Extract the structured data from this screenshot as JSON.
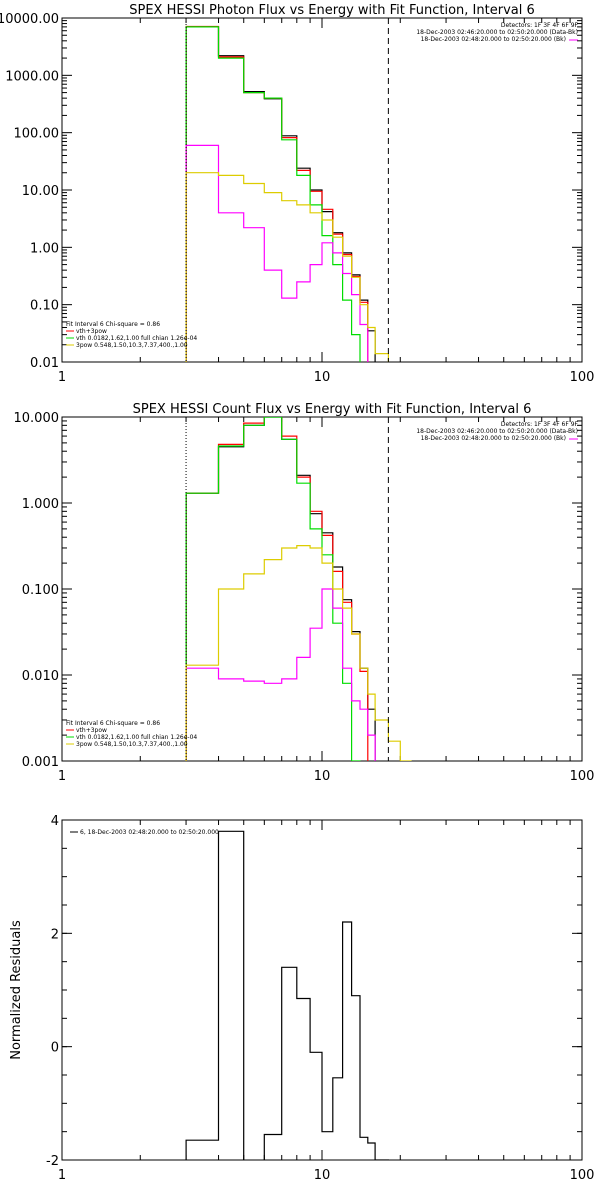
{
  "chart_data": [
    {
      "type": "line",
      "title": "SPEX HESSI Photon Flux vs Energy with Fit Function, Interval 6",
      "xscale": "log",
      "yscale": "log",
      "xlim": [
        1,
        100
      ],
      "ylim": [
        0.01,
        10000
      ],
      "x_ticks": [
        1,
        10,
        100
      ],
      "x_tick_labels": [
        "1",
        "10",
        "100"
      ],
      "y_ticks": [
        0.01,
        0.1,
        1,
        10,
        100,
        1000,
        10000
      ],
      "y_tick_labels": [
        "0.01",
        "0.10",
        "1.00",
        "10.00",
        "100.00",
        "1000.00",
        "10000.00"
      ],
      "info_lines": [
        "Detectors: 1F 3F 4F 6F 9F",
        "18-Dec-2003 02:46:20.000 to 02:50:20.000 (Data-Bk)",
        "18-Dec-2003 02:48:20.000 to 02:50:20.000 (Bk)"
      ],
      "legend_title": "Fit Interval 6   Chi-square = 0.86",
      "legend_items": [
        "vth+3pow",
        "vth 0.0182,1.62,1.00  full chian 1.26e-04",
        "3pow 0.548,1.50,10.3,7.37,400.,1.00"
      ],
      "edges": [
        3,
        4,
        5,
        6,
        7,
        8,
        9,
        10,
        11,
        12,
        13,
        14,
        15,
        16,
        18,
        20,
        22
      ],
      "series": [
        {
          "role": "data",
          "color": "#000000",
          "values": [
            7000,
            2200,
            520,
            390,
            88,
            24,
            10,
            4.2,
            1.8,
            0.8,
            0.33,
            0.12,
            0.035,
            null,
            null,
            null
          ]
        },
        {
          "role": "total",
          "color": "#ff0000",
          "values": [
            7100,
            2100,
            500,
            400,
            82,
            22,
            9.5,
            4.6,
            1.7,
            0.75,
            0.31,
            0.11,
            null,
            null,
            null,
            null
          ]
        },
        {
          "role": "thermal",
          "color": "#00dd00",
          "values": [
            7000,
            2000,
            500,
            400,
            75,
            18,
            5.5,
            1.6,
            0.5,
            0.12,
            0.03,
            null,
            null,
            null,
            null,
            null
          ]
        },
        {
          "role": "power law",
          "color": "#ff00ff",
          "values": [
            60,
            4,
            2.2,
            0.4,
            0.13,
            0.25,
            0.5,
            1.2,
            0.8,
            0.35,
            0.15,
            0.045,
            0.008,
            null,
            null,
            null
          ]
        },
        {
          "role": "power law 2",
          "color": "#ddcc00",
          "values": [
            20,
            18,
            13,
            9,
            6.5,
            5.5,
            4,
            3,
            1.5,
            0.7,
            0.3,
            0.1,
            0.04,
            0.014,
            0.008,
            0.004
          ]
        }
      ],
      "vlines": [
        {
          "x": 3,
          "style": "dotted"
        },
        {
          "x": 18,
          "style": "dashed"
        }
      ]
    },
    {
      "type": "line",
      "title": "SPEX HESSI Count Flux vs Energy with Fit Function, Interval 6",
      "xscale": "log",
      "yscale": "log",
      "xlim": [
        1,
        100
      ],
      "ylim": [
        0.001,
        10
      ],
      "x_ticks": [
        1,
        10,
        100
      ],
      "x_tick_labels": [
        "1",
        "10",
        "100"
      ],
      "y_ticks": [
        0.001,
        0.01,
        0.1,
        1,
        10
      ],
      "y_tick_labels": [
        "0.001",
        "0.010",
        "0.100",
        "1.000",
        "10.000"
      ],
      "info_lines": [
        "Detectors: 1F 3F 4F 6F 9F",
        "18-Dec-2003 02:46:20.000 to 02:50:20.000 (Data-Bk)",
        "18-Dec-2003 02:48:20.000 to 02:50:20.000 (Bk)"
      ],
      "legend_title": "Fit Interval 6   Chi-square = 0.86",
      "legend_items": [
        "vth+3pow",
        "vth 0.0182,1.62,1.00  full chian 1.26e-04",
        "3pow 0.548,1.50,10.3,7.37,400.,1.00"
      ],
      "edges": [
        3,
        4,
        5,
        6,
        7,
        8,
        9,
        10,
        11,
        12,
        13,
        14,
        15,
        16,
        18,
        20,
        22
      ],
      "series": [
        {
          "role": "data",
          "color": "#000000",
          "values": [
            1.3,
            4.5,
            8.0,
            10.0,
            5.5,
            2.1,
            0.75,
            0.45,
            0.18,
            0.075,
            0.032,
            0.012,
            0.004,
            null,
            null,
            null
          ]
        },
        {
          "role": "total",
          "color": "#ff0000",
          "values": [
            1.3,
            4.8,
            8.5,
            10.5,
            6.0,
            2.0,
            0.8,
            0.42,
            0.16,
            0.07,
            0.03,
            0.011,
            null,
            null,
            null,
            null
          ]
        },
        {
          "role": "thermal",
          "color": "#00dd00",
          "values": [
            1.3,
            4.6,
            8.0,
            10.0,
            5.5,
            1.7,
            0.5,
            0.25,
            0.04,
            0.008,
            0.001,
            null,
            null,
            null,
            null,
            null
          ]
        },
        {
          "role": "power law",
          "color": "#ff00ff",
          "values": [
            0.012,
            0.009,
            0.0085,
            0.008,
            0.009,
            0.016,
            0.035,
            0.1,
            0.06,
            0.012,
            0.005,
            0.004,
            0.002,
            null,
            null,
            null
          ]
        },
        {
          "role": "power law 2",
          "color": "#ddcc00",
          "values": [
            0.013,
            0.1,
            0.15,
            0.22,
            0.3,
            0.32,
            0.3,
            0.2,
            0.1,
            0.06,
            0.03,
            0.012,
            0.006,
            0.003,
            0.0017,
            0.001
          ]
        }
      ],
      "vlines": [
        {
          "x": 3,
          "style": "dotted"
        },
        {
          "x": 18,
          "style": "dashed"
        }
      ]
    },
    {
      "type": "line",
      "title": "",
      "ylabel": "Normalized Residuals",
      "xscale": "log",
      "yscale": "linear",
      "xlim": [
        1,
        100
      ],
      "ylim": [
        -2,
        4
      ],
      "x_ticks": [
        1,
        10,
        100
      ],
      "x_tick_labels": [
        "1",
        "10",
        "100"
      ],
      "y_ticks": [
        -2,
        0,
        2,
        4
      ],
      "y_tick_labels": [
        "-2",
        "0",
        "2",
        "4"
      ],
      "legend_items": [
        "6, 18-Dec-2003 02:48:20.000 to 02:50:20.000"
      ],
      "edges": [
        3,
        4,
        5,
        6,
        7,
        8,
        9,
        10,
        11,
        12,
        13,
        14,
        15,
        16,
        18
      ],
      "series": [
        {
          "role": "residuals",
          "color": "#000000",
          "values": [
            -1.65,
            3.8,
            -2.05,
            -1.55,
            1.4,
            0.85,
            -0.1,
            -1.5,
            -0.55,
            2.2,
            0.9,
            -1.6,
            -1.7,
            -2.0
          ]
        }
      ]
    }
  ]
}
